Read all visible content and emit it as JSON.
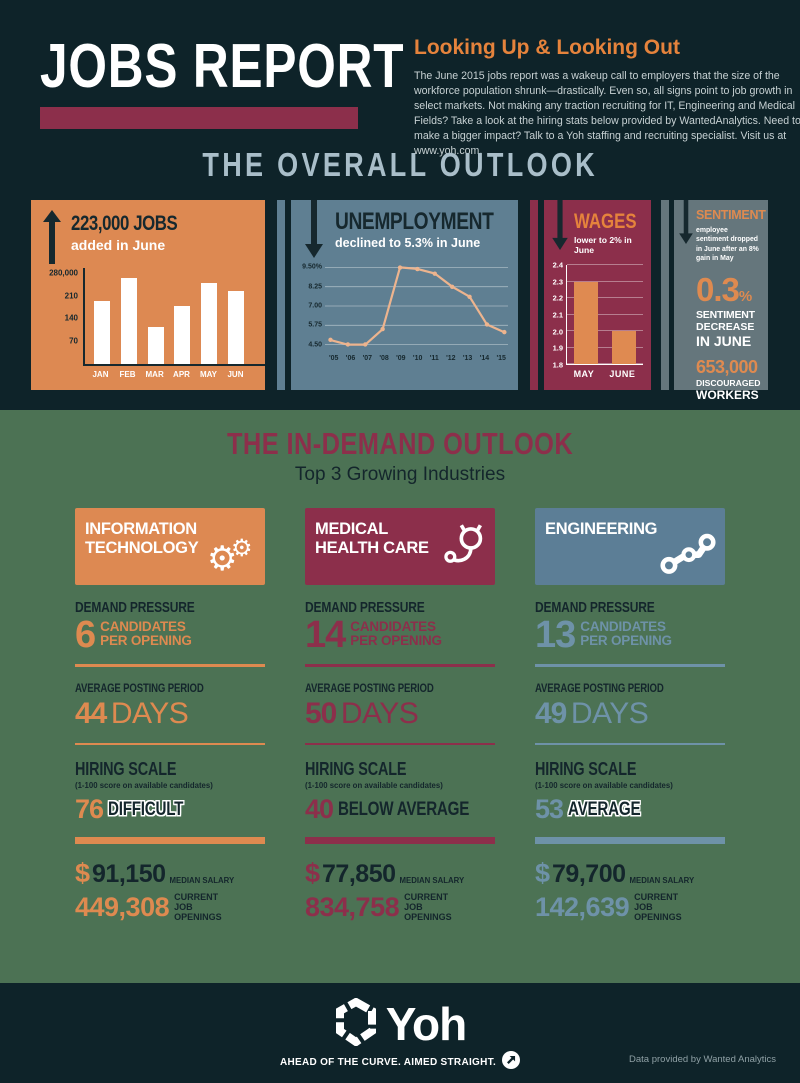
{
  "header": {
    "title": "JOBS REPORT",
    "heading": "Looking Up & Looking Out",
    "paragraph": "The June 2015 jobs report was a wakeup call to employers that the size of the workforce population shrunk—drastically. Even so, all signs point to job growth in select markets. Not making any traction recruiting for IT, Engineering and Medical Fields? Take a look at the hiring stats below provided by WantedAnalytics. Need to make a bigger impact? Talk to a Yoh staffing and recruiting specialist. Visit us at www.yoh.com."
  },
  "overall": {
    "title": "THE OVERALL OUTLOOK",
    "jobs": {
      "headline": "223,000 JOBS",
      "sub": "added in June"
    },
    "unemployment": {
      "headline": "UNEMPLOYMENT",
      "sub": "declined to 5.3% in June"
    },
    "wages": {
      "headline": "WAGES",
      "sub": "lower to 2% in June"
    },
    "sentiment": {
      "headline": "SENTIMENT",
      "note": "employee sentiment dropped in June after an 8% gain in May",
      "stat": "0.3",
      "stat_pct": "%",
      "decrease_l1": "SENTIMENT",
      "decrease_l2": "DECREASE",
      "decrease_l3": "IN JUNE",
      "workers_num": "653,000",
      "workers_l1": "DISCOURAGED",
      "workers_l2": "WORKERS"
    }
  },
  "chart_data": [
    {
      "id": "jobs",
      "type": "bar",
      "title": "223,000 JOBS added in June",
      "categories": [
        "JAN",
        "FEB",
        "MAR",
        "APR",
        "MAY",
        "JUN"
      ],
      "values": [
        195,
        265,
        115,
        178,
        248,
        223
      ],
      "unit": "thousands of jobs added per month",
      "ytick_values": [
        280,
        210,
        140,
        70
      ],
      "ytick_labels": [
        "280,000",
        "210",
        "140",
        "70"
      ],
      "ylim": [
        0,
        295
      ],
      "bar_color": "#FFFFFF",
      "grid": false,
      "legend": "none"
    },
    {
      "id": "unemployment",
      "type": "line",
      "title": "UNEMPLOYMENT declined to 5.3% in June",
      "x": [
        "'05",
        "'06",
        "'07",
        "'08",
        "'09",
        "'10",
        "'11",
        "'12",
        "'13",
        "'14",
        "'15"
      ],
      "values": [
        4.8,
        4.5,
        4.5,
        5.5,
        9.5,
        9.4,
        9.1,
        8.25,
        7.6,
        5.8,
        5.3
      ],
      "unit": "percent unemployment rate",
      "ytick_values": [
        9.5,
        8.25,
        7.0,
        5.75,
        4.5
      ],
      "ytick_labels": [
        "9.50%",
        "8.25",
        "7.00",
        "5.75",
        "4.50"
      ],
      "ylim": [
        4.5,
        9.5
      ],
      "line_color": "#EDB48E",
      "grid": true,
      "legend": "none"
    },
    {
      "id": "wages",
      "type": "bar",
      "title": "WAGES lower to 2% in June",
      "categories": [
        "MAY",
        "JUNE"
      ],
      "values": [
        2.3,
        2.0
      ],
      "unit": "percent wage growth",
      "ytick_values": [
        2.4,
        2.3,
        2.2,
        2.1,
        2.0,
        1.9,
        1.8
      ],
      "ytick_labels": [
        "2.4",
        "2.3",
        "2.2",
        "2.1",
        "2.0",
        "1.9",
        "1.8"
      ],
      "ylim": [
        1.8,
        2.4
      ],
      "bar_color": "#DF8A51",
      "grid": true,
      "legend": "none"
    }
  ],
  "in_demand": {
    "title": "THE IN-DEMAND OUTLOOK",
    "subtitle": "Top 3 Growing Industries",
    "columns": [
      {
        "name": "INFORMATION TECHNOLOGY",
        "icon": "gears-icon",
        "accent": "#DE8A50",
        "card_bg": "#DD8952",
        "demand_label": "DEMAND PRESSURE",
        "demand_value": "6",
        "demand_unit": "CANDIDATES PER OPENING",
        "posting_label": "AVERAGE POSTING PERIOD",
        "posting_value": "44",
        "posting_unit": "DAYS",
        "hiring_label": "HIRING SCALE",
        "hiring_sub": "(1-100 score on available candidates)",
        "hiring_score": "76",
        "hiring_verdict": "DIFFICULT",
        "verdict_outlined": true,
        "salary_symbol": "$",
        "salary_value": "91,150",
        "salary_label": "MEDIAN SALARY",
        "openings_value": "449,308",
        "openings_label": "CURRENT JOB OPENINGS"
      },
      {
        "name": "MEDICAL HEALTH CARE",
        "icon": "stethoscope-icon",
        "accent": "#8C2F4B",
        "card_bg": "#8C2F4B",
        "demand_label": "DEMAND PRESSURE",
        "demand_value": "14",
        "demand_unit": "CANDIDATES PER OPENING",
        "posting_label": "AVERAGE POSTING PERIOD",
        "posting_value": "50",
        "posting_unit": "DAYS",
        "hiring_label": "HIRING SCALE",
        "hiring_sub": "(1-100 score on available candidates)",
        "hiring_score": "40",
        "hiring_verdict": "BELOW AVERAGE",
        "verdict_outlined": false,
        "salary_symbol": "$",
        "salary_value": "77,850",
        "salary_label": "MEDIAN SALARY",
        "openings_value": "834,758",
        "openings_label": "CURRENT JOB OPENINGS"
      },
      {
        "name": "ENGINEERING",
        "icon": "nodes-icon",
        "accent": "#6E92A8",
        "card_bg": "#5C7E96",
        "demand_label": "DEMAND PRESSURE",
        "demand_value": "13",
        "demand_unit": "CANDIDATES PER OPENING",
        "posting_label": "AVERAGE POSTING PERIOD",
        "posting_value": "49",
        "posting_unit": "DAYS",
        "hiring_label": "HIRING SCALE",
        "hiring_sub": "(1-100 score on available candidates)",
        "hiring_score": "53",
        "hiring_verdict": "AVERAGE",
        "verdict_outlined": true,
        "salary_symbol": "$",
        "salary_value": "79,700",
        "salary_label": "MEDIAN SALARY",
        "openings_value": "142,639",
        "openings_label": "CURRENT JOB OPENINGS"
      }
    ]
  },
  "footer": {
    "logo_text": "Yoh",
    "tagline": "AHEAD OF THE CURVE. AIMED STRAIGHT.",
    "credit": "Data provided by Wanted Analytics"
  }
}
